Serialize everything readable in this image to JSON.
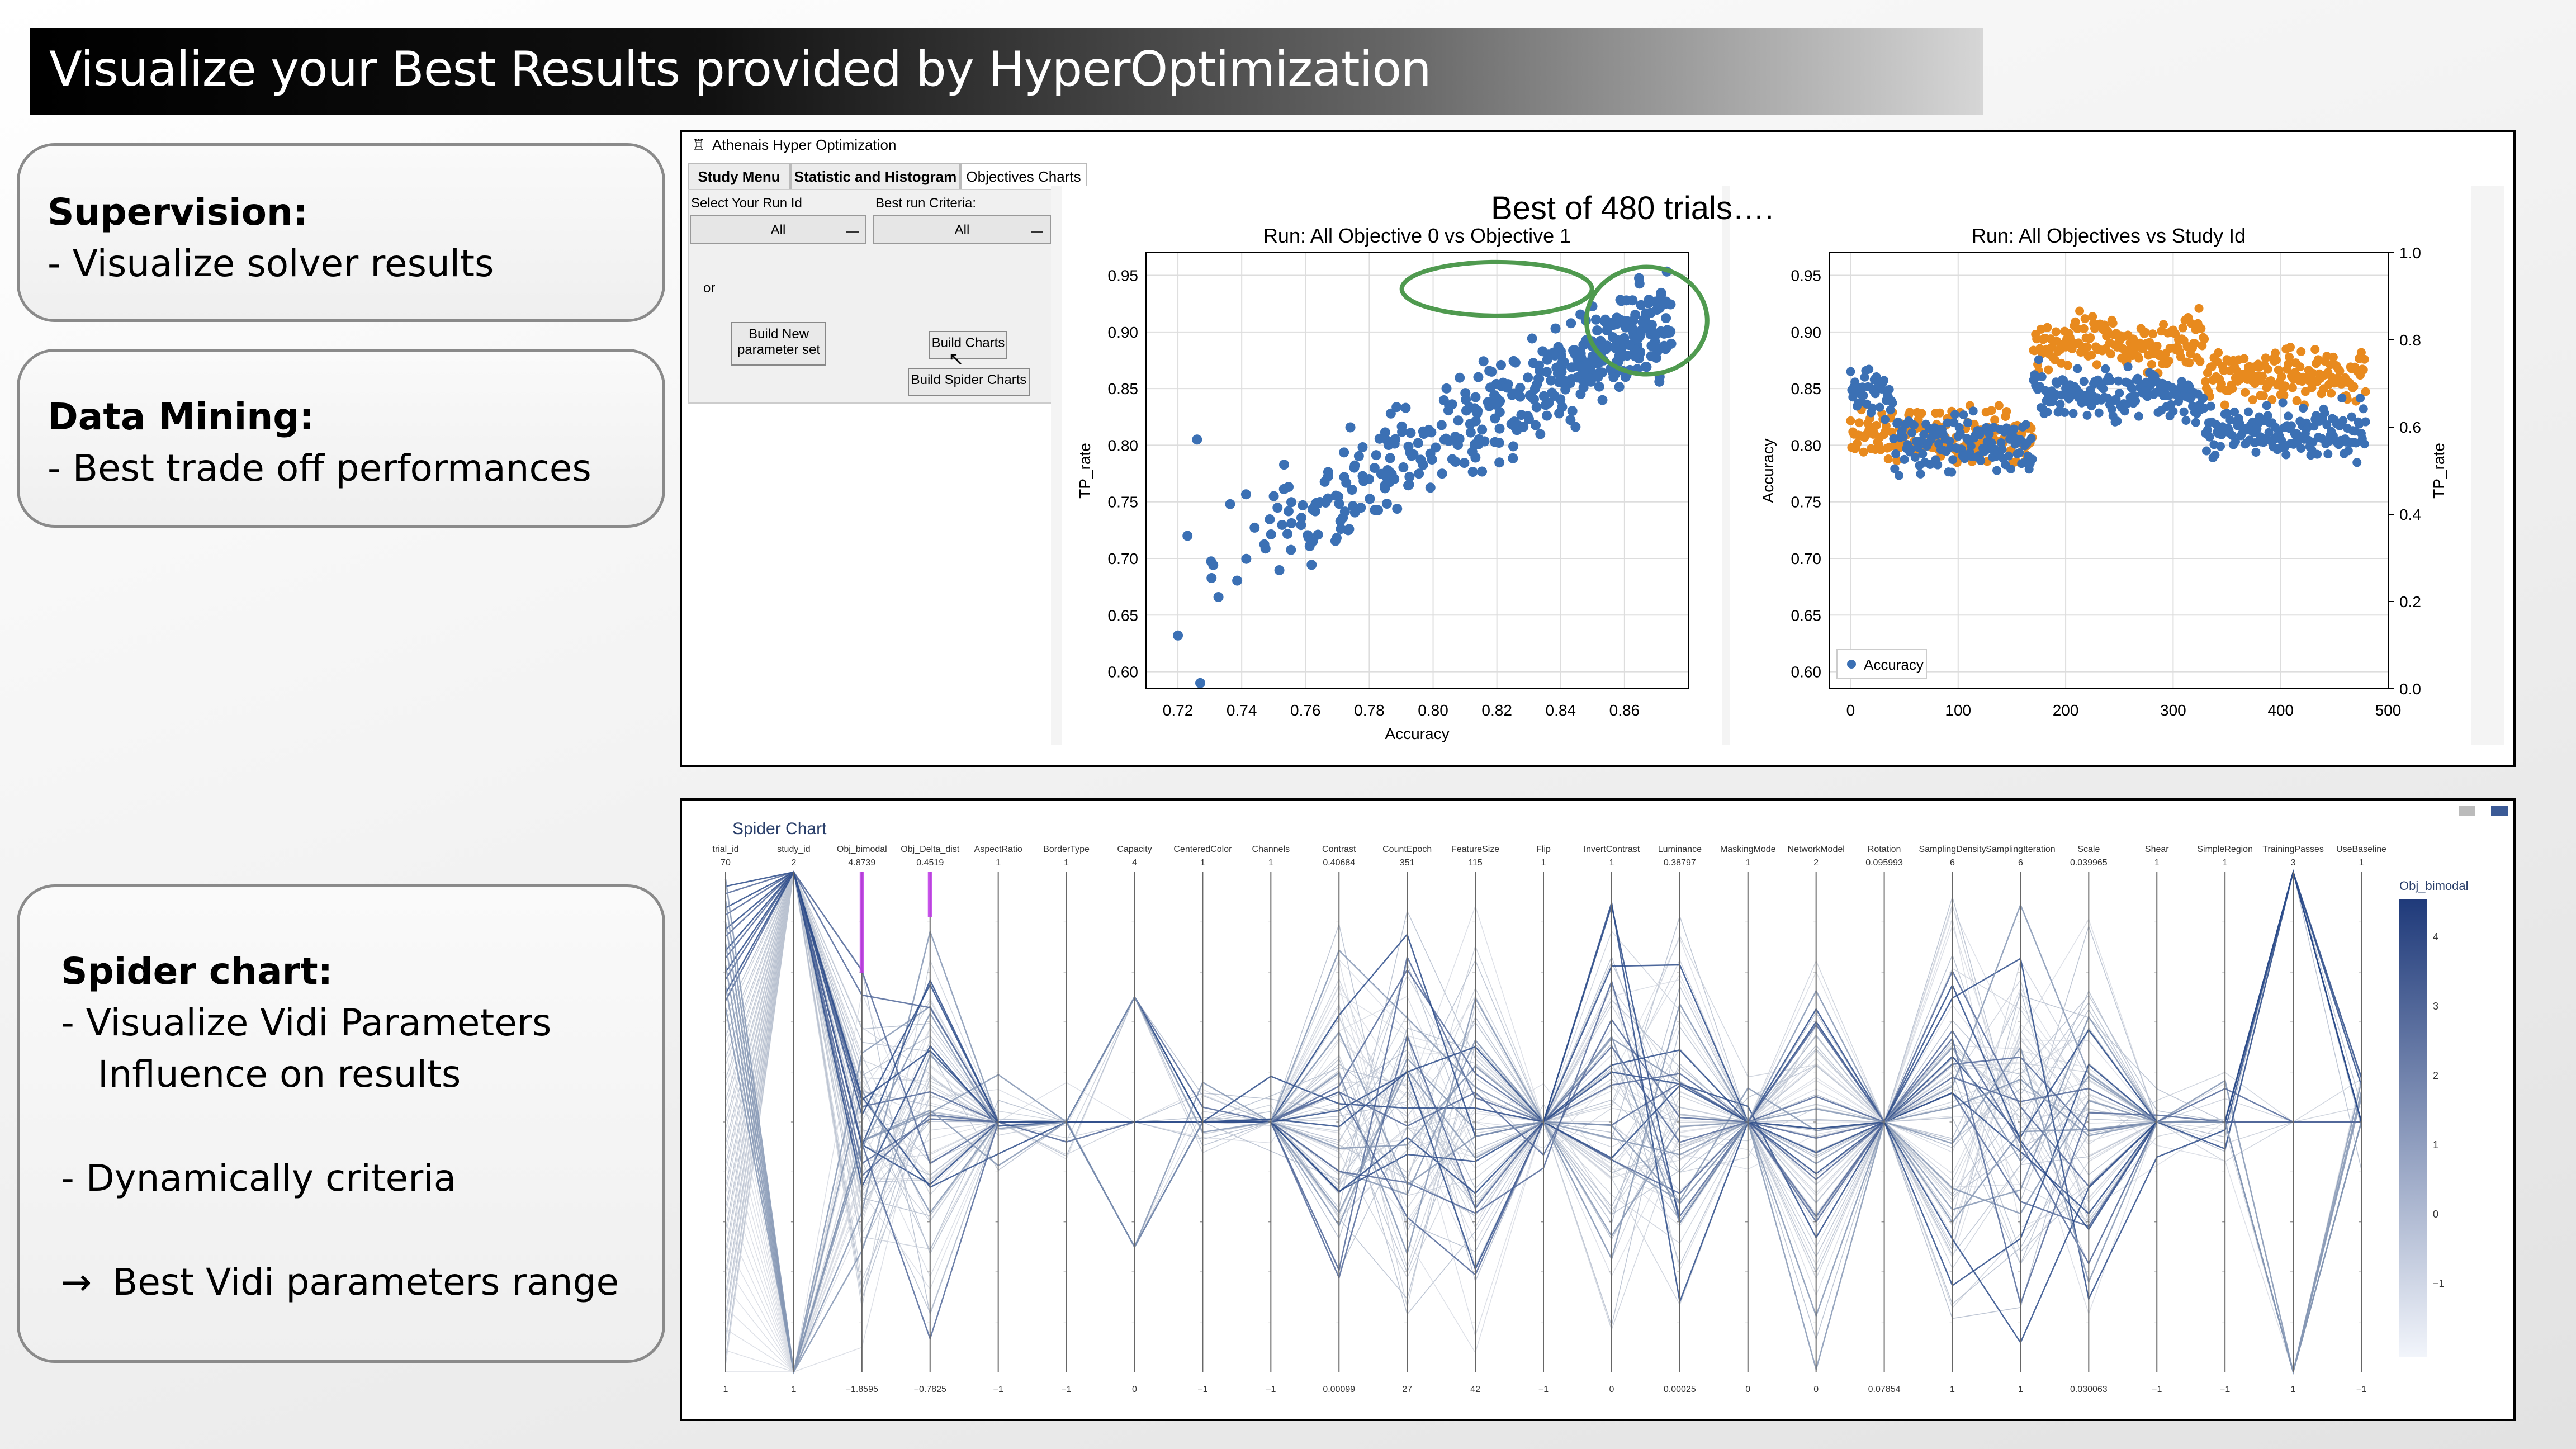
{
  "slide": {
    "title": "Visualize your Best Results provided by HyperOptimization"
  },
  "callouts": {
    "supervision": {
      "heading": "Supervision:",
      "bullet": "-  Visualize solver results"
    },
    "data_mining": {
      "heading": "Data Mining:",
      "bullet": "-  Best trade off performances"
    },
    "spider": {
      "heading": "Spider chart:",
      "line1": "-  Visualize Vidi Parameters",
      "line2": "Influence on results",
      "line3": "-  Dynamically criteria",
      "line4": "Best Vidi parameters range",
      "arrow": "→"
    }
  },
  "app": {
    "window_title": "Athenais Hyper Optimization",
    "tabs": [
      "Study Menu",
      "Statistic and Histogram",
      "Objectives Charts"
    ],
    "active_tab": "Objectives Charts",
    "select_run_label": "Select Your Run Id",
    "select_run_value": "All",
    "best_run_label": "Best run Criteria:",
    "best_run_value": "All",
    "or_label": "or",
    "build_new_line1": "Build New",
    "build_new_line2": "parameter set",
    "build_charts": "Build Charts",
    "build_spider": "Build Spider Charts",
    "best_of": "Best of 480 trials…."
  },
  "spider": {
    "title": "Spider Chart",
    "colorbar_title": "Obj_bimodal",
    "colorbar_ticks": [
      "4",
      "3",
      "2",
      "1",
      "0",
      "−1"
    ],
    "axes": [
      {
        "label": "trial_id",
        "top": "70",
        "bottom": "1"
      },
      {
        "label": "study_id",
        "top": "2",
        "bottom": "1"
      },
      {
        "label": "Obj_bimodal",
        "top": "4.8739",
        "bottom": "−1.8595"
      },
      {
        "label": "Obj_Delta_dist",
        "top": "0.4519",
        "bottom": "−0.7825"
      },
      {
        "label": "AspectRatio",
        "top": "1",
        "bottom": "−1"
      },
      {
        "label": "BorderType",
        "top": "1",
        "bottom": "−1"
      },
      {
        "label": "Capacity",
        "top": "4",
        "bottom": "0"
      },
      {
        "label": "CenteredColor",
        "top": "1",
        "bottom": "−1"
      },
      {
        "label": "Channels",
        "top": "1",
        "bottom": "−1"
      },
      {
        "label": "Contrast",
        "top": "0.40684",
        "bottom": "0.00099"
      },
      {
        "label": "CountEpoch",
        "top": "351",
        "bottom": "27"
      },
      {
        "label": "FeatureSize",
        "top": "115",
        "bottom": "42"
      },
      {
        "label": "Flip",
        "top": "1",
        "bottom": "−1"
      },
      {
        "label": "InvertContrast",
        "top": "1",
        "bottom": "0"
      },
      {
        "label": "Luminance",
        "top": "0.38797",
        "bottom": "0.00025"
      },
      {
        "label": "MaskingMode",
        "top": "1",
        "bottom": "0"
      },
      {
        "label": "NetworkModel",
        "top": "2",
        "bottom": "0"
      },
      {
        "label": "Rotation",
        "top": "0.095993",
        "bottom": "0.07854"
      },
      {
        "label": "SamplingDensity",
        "top": "6",
        "bottom": "1"
      },
      {
        "label": "SamplingIteration",
        "top": "6",
        "bottom": "1"
      },
      {
        "label": "Scale",
        "top": "0.039965",
        "bottom": "0.030063"
      },
      {
        "label": "Shear",
        "top": "1",
        "bottom": "−1"
      },
      {
        "label": "SimpleRegion",
        "top": "1",
        "bottom": "−1"
      },
      {
        "label": "TrainingPasses",
        "top": "3",
        "bottom": "1"
      },
      {
        "label": "UseBaseline",
        "top": "1",
        "bottom": "−1"
      }
    ]
  },
  "chart_data": [
    {
      "type": "scatter",
      "title": "Run: All Objective 0 vs Objective 1",
      "xlabel": "Accuracy",
      "ylabel": "TP_rate",
      "xlim": [
        0.71,
        0.88
      ],
      "ylim": [
        0.585,
        0.97
      ],
      "xticks": [
        "0.72",
        "0.74",
        "0.76",
        "0.78",
        "0.80",
        "0.82",
        "0.84",
        "0.86"
      ],
      "yticks": [
        "0.95",
        "0.90",
        "0.85",
        "0.80",
        "0.75",
        "0.70",
        "0.65",
        "0.60"
      ],
      "grid": true,
      "color": "#3b70b4",
      "highlight_color": "#4f9a4f",
      "points_count_est": 480
    },
    {
      "type": "scatter",
      "title": "Run: All Objectives vs Study Id",
      "xlabel": "",
      "ylabel": "Accuracy",
      "y2label": "TP_rate",
      "xlim": [
        -20,
        500
      ],
      "ylim": [
        0.585,
        0.97
      ],
      "y2lim": [
        0,
        1
      ],
      "xticks": [
        "0",
        "100",
        "200",
        "300",
        "400",
        "500"
      ],
      "yticks": [
        "0.95",
        "0.90",
        "0.85",
        "0.80",
        "0.75",
        "0.70",
        "0.65",
        "0.60"
      ],
      "y2ticks": [
        "1.0",
        "0.8",
        "0.6",
        "0.4",
        "0.2",
        "0.0"
      ],
      "legend": "Accuracy",
      "legend_position": "bottom-left",
      "grid": true,
      "series": [
        {
          "name": "Accuracy",
          "color": "#3b70b4"
        },
        {
          "name": "TP_rate",
          "color": "#e88a1e"
        }
      ]
    }
  ]
}
